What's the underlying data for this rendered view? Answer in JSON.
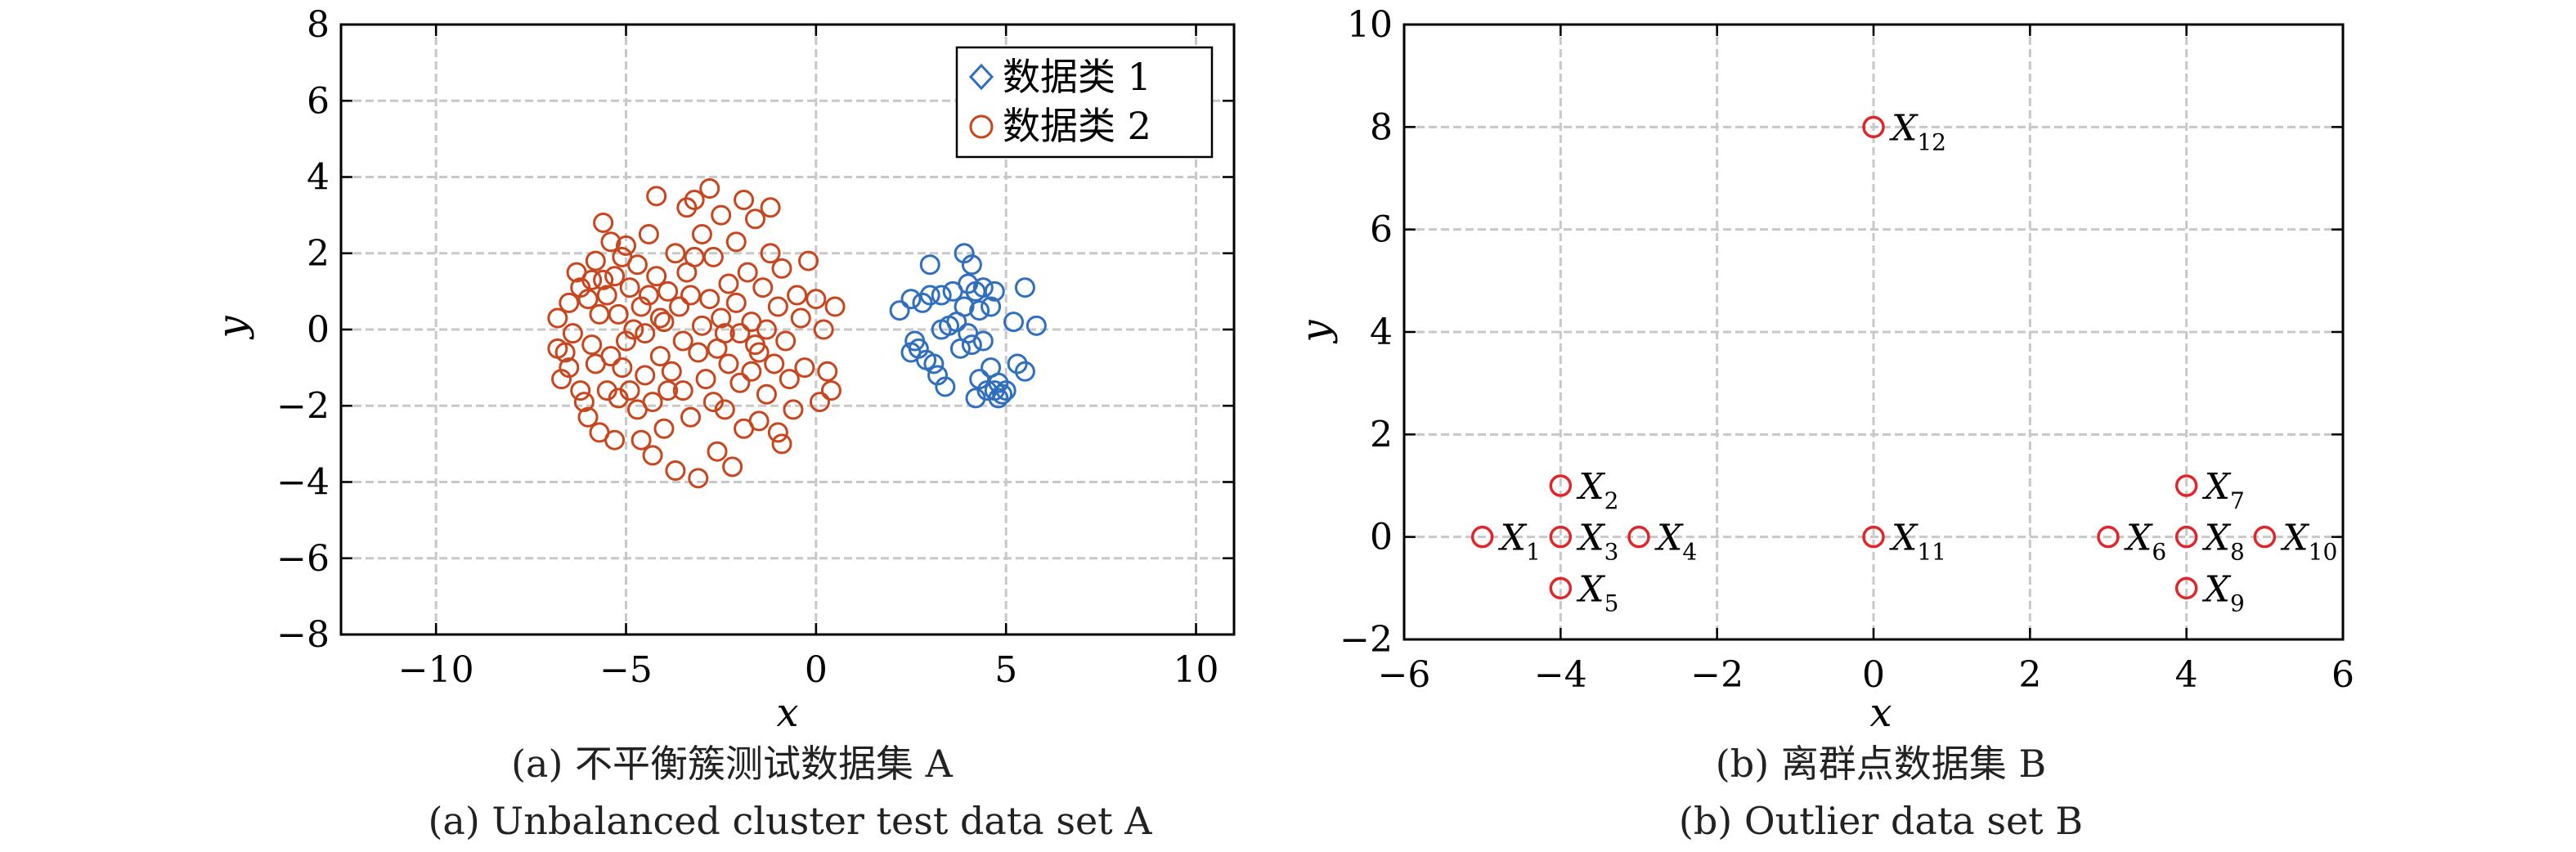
{
  "colors": {
    "series1": "#2f6fbd",
    "series2": "#c8461d",
    "outlier": "#e0262a",
    "grid": "#c8c8c8",
    "axis": "#000000"
  },
  "chart_data": [
    {
      "type": "scatter",
      "xlabel": "x",
      "ylabel": "y",
      "xlim": [
        -12.5,
        11
      ],
      "ylim": [
        -8,
        8
      ],
      "xticks": [
        -10,
        -5,
        0,
        5,
        10
      ],
      "yticks": [
        -8,
        -6,
        -4,
        -2,
        0,
        2,
        4,
        6,
        8
      ],
      "xtick_labels": [
        "−10",
        "−5",
        "0",
        "5",
        "10"
      ],
      "ytick_labels": [
        "−8",
        "−6",
        "−4",
        "−2",
        "0",
        "2",
        "4",
        "6",
        "8"
      ],
      "grid": true,
      "legend_position": "top-right",
      "caption_cn": "(a) 不平衡簇测试数据集 A",
      "caption_en": "(a) Unbalanced cluster test data set A",
      "series": [
        {
          "name": "数据类 1",
          "marker": "circle",
          "legend_marker": "diamond",
          "points": [
            [
              2.2,
              0.5
            ],
            [
              2.5,
              0.8
            ],
            [
              2.6,
              -0.3
            ],
            [
              2.5,
              -0.6
            ],
            [
              2.8,
              0.7
            ],
            [
              2.9,
              -0.8
            ],
            [
              3.0,
              1.7
            ],
            [
              3.0,
              0.9
            ],
            [
              3.1,
              -0.9
            ],
            [
              3.2,
              -1.2
            ],
            [
              3.3,
              0.0
            ],
            [
              3.4,
              -1.5
            ],
            [
              3.5,
              0.1
            ],
            [
              3.6,
              1.0
            ],
            [
              3.7,
              0.2
            ],
            [
              3.8,
              -0.5
            ],
            [
              3.9,
              2.0
            ],
            [
              4.0,
              1.2
            ],
            [
              4.0,
              -0.1
            ],
            [
              4.1,
              -0.4
            ],
            [
              4.1,
              1.7
            ],
            [
              4.2,
              1.0
            ],
            [
              4.2,
              -1.8
            ],
            [
              4.3,
              0.5
            ],
            [
              4.3,
              -1.3
            ],
            [
              4.4,
              1.1
            ],
            [
              4.4,
              -0.3
            ],
            [
              4.5,
              -1.6
            ],
            [
              4.6,
              0.6
            ],
            [
              4.7,
              1.0
            ],
            [
              4.7,
              -1.6
            ],
            [
              4.8,
              -1.4
            ],
            [
              4.8,
              -1.8
            ],
            [
              4.9,
              -1.7
            ],
            [
              5.0,
              -1.6
            ],
            [
              5.2,
              0.2
            ],
            [
              5.3,
              -0.9
            ],
            [
              5.5,
              1.1
            ],
            [
              5.5,
              -1.1
            ],
            [
              5.8,
              0.1
            ],
            [
              2.7,
              -0.5
            ],
            [
              3.3,
              0.9
            ],
            [
              3.9,
              0.6
            ],
            [
              4.6,
              -1.0
            ]
          ]
        },
        {
          "name": "数据类 2",
          "marker": "circle",
          "legend_marker": "circle",
          "points": [
            [
              -6.8,
              0.3
            ],
            [
              -6.8,
              -0.5
            ],
            [
              -6.7,
              -1.3
            ],
            [
              -6.6,
              -0.6
            ],
            [
              -6.5,
              0.7
            ],
            [
              -6.4,
              -0.1
            ],
            [
              -6.3,
              1.5
            ],
            [
              -6.2,
              -1.6
            ],
            [
              -6.2,
              1.1
            ],
            [
              -6.1,
              -1.9
            ],
            [
              -6.0,
              -2.3
            ],
            [
              -6.0,
              0.8
            ],
            [
              -5.9,
              -0.4
            ],
            [
              -5.8,
              1.8
            ],
            [
              -5.8,
              -0.9
            ],
            [
              -5.7,
              0.4
            ],
            [
              -5.7,
              -2.7
            ],
            [
              -5.6,
              1.3
            ],
            [
              -5.6,
              2.8
            ],
            [
              -5.5,
              -1.6
            ],
            [
              -5.5,
              0.9
            ],
            [
              -5.4,
              2.3
            ],
            [
              -5.4,
              -0.7
            ],
            [
              -5.3,
              -2.9
            ],
            [
              -5.3,
              1.4
            ],
            [
              -5.2,
              -1.8
            ],
            [
              -5.2,
              0.4
            ],
            [
              -5.1,
              -1.0
            ],
            [
              -5.0,
              2.2
            ],
            [
              -5.0,
              -0.3
            ],
            [
              -4.9,
              1.1
            ],
            [
              -4.9,
              -1.6
            ],
            [
              -4.8,
              0.0
            ],
            [
              -4.7,
              -2.1
            ],
            [
              -4.7,
              1.7
            ],
            [
              -4.6,
              0.6
            ],
            [
              -4.5,
              -1.2
            ],
            [
              -4.5,
              -0.1
            ],
            [
              -4.4,
              2.5
            ],
            [
              -4.4,
              0.9
            ],
            [
              -4.3,
              -1.9
            ],
            [
              -4.3,
              -3.3
            ],
            [
              -4.2,
              3.5
            ],
            [
              -4.2,
              1.4
            ],
            [
              -4.1,
              -0.7
            ],
            [
              -4.0,
              0.2
            ],
            [
              -4.0,
              -2.6
            ],
            [
              -3.9,
              1.0
            ],
            [
              -3.8,
              -1.1
            ],
            [
              -3.7,
              -3.7
            ],
            [
              -3.7,
              2.0
            ],
            [
              -3.6,
              0.6
            ],
            [
              -3.5,
              -0.3
            ],
            [
              -3.5,
              -1.6
            ],
            [
              -3.4,
              3.2
            ],
            [
              -3.4,
              1.5
            ],
            [
              -3.3,
              -2.3
            ],
            [
              -3.3,
              0.9
            ],
            [
              -3.2,
              3.4
            ],
            [
              -3.1,
              -0.6
            ],
            [
              -3.1,
              -3.9
            ],
            [
              -3.0,
              0.1
            ],
            [
              -3.0,
              2.5
            ],
            [
              -2.9,
              -1.3
            ],
            [
              -2.8,
              3.7
            ],
            [
              -2.8,
              0.8
            ],
            [
              -2.7,
              -1.9
            ],
            [
              -2.7,
              1.9
            ],
            [
              -2.6,
              -0.5
            ],
            [
              -2.6,
              -3.2
            ],
            [
              -2.5,
              3.0
            ],
            [
              -2.5,
              0.3
            ],
            [
              -2.4,
              -2.1
            ],
            [
              -2.3,
              1.2
            ],
            [
              -2.3,
              -0.9
            ],
            [
              -2.2,
              -3.6
            ],
            [
              -2.1,
              0.7
            ],
            [
              -2.1,
              2.3
            ],
            [
              -2.0,
              -1.4
            ],
            [
              -2.0,
              -0.1
            ],
            [
              -1.9,
              3.4
            ],
            [
              -1.9,
              -2.6
            ],
            [
              -1.8,
              1.5
            ],
            [
              -1.7,
              0.2
            ],
            [
              -1.7,
              -1.1
            ],
            [
              -1.6,
              2.9
            ],
            [
              -1.5,
              -0.6
            ],
            [
              -1.5,
              -2.4
            ],
            [
              -1.4,
              1.1
            ],
            [
              -1.3,
              0.0
            ],
            [
              -1.3,
              -1.7
            ],
            [
              -1.2,
              3.2
            ],
            [
              -1.2,
              2.0
            ],
            [
              -1.1,
              -0.9
            ],
            [
              -1.0,
              -2.7
            ],
            [
              -1.0,
              0.6
            ],
            [
              -0.9,
              1.6
            ],
            [
              -0.8,
              -0.3
            ],
            [
              -0.7,
              -1.3
            ],
            [
              -0.6,
              -2.1
            ],
            [
              -0.5,
              0.9
            ],
            [
              -0.4,
              0.3
            ],
            [
              -0.3,
              -1.0
            ],
            [
              -0.2,
              1.8
            ],
            [
              0.0,
              0.8
            ],
            [
              0.1,
              -1.9
            ],
            [
              0.2,
              0.0
            ],
            [
              0.3,
              -1.1
            ],
            [
              0.4,
              -1.6
            ],
            [
              0.5,
              0.6
            ],
            [
              -6.5,
              -1.0
            ],
            [
              -5.9,
              1.3
            ],
            [
              -4.6,
              -2.9
            ],
            [
              -3.9,
              -1.6
            ],
            [
              -3.2,
              1.9
            ],
            [
              -2.4,
              -0.1
            ],
            [
              -1.6,
              -0.4
            ],
            [
              -0.9,
              -3.0
            ],
            [
              -4.1,
              0.3
            ],
            [
              -5.1,
              1.9
            ]
          ]
        }
      ]
    },
    {
      "type": "scatter",
      "xlabel": "x",
      "ylabel": "y",
      "xlim": [
        -6,
        6
      ],
      "ylim": [
        -2,
        10
      ],
      "xticks": [
        -6,
        -4,
        -2,
        0,
        2,
        4,
        6
      ],
      "yticks": [
        -2,
        0,
        2,
        4,
        6,
        8,
        10
      ],
      "xtick_labels": [
        "−6",
        "−4",
        "−2",
        "0",
        "2",
        "4",
        "6"
      ],
      "ytick_labels": [
        "−2",
        "0",
        "2",
        "4",
        "6",
        "8",
        "10"
      ],
      "grid": true,
      "caption_cn": "(b) 离群点数据集 B",
      "caption_en": "(b) Outlier data set B",
      "points": [
        {
          "label": "X",
          "sub": "1",
          "x": -5,
          "y": 0,
          "label_side": "right"
        },
        {
          "label": "X",
          "sub": "2",
          "x": -4,
          "y": 1,
          "label_side": "right"
        },
        {
          "label": "X",
          "sub": "3",
          "x": -4,
          "y": 0,
          "label_side": "right"
        },
        {
          "label": "X",
          "sub": "4",
          "x": -3,
          "y": 0,
          "label_side": "right"
        },
        {
          "label": "X",
          "sub": "5",
          "x": -4,
          "y": -1,
          "label_side": "right"
        },
        {
          "label": "X",
          "sub": "6",
          "x": 3,
          "y": 0,
          "label_side": "right"
        },
        {
          "label": "X",
          "sub": "7",
          "x": 4,
          "y": 1,
          "label_side": "right"
        },
        {
          "label": "X",
          "sub": "8",
          "x": 4,
          "y": 0,
          "label_side": "right"
        },
        {
          "label": "X",
          "sub": "9",
          "x": 4,
          "y": -1,
          "label_side": "right"
        },
        {
          "label": "X",
          "sub": "10",
          "x": 5,
          "y": 0,
          "label_side": "right"
        },
        {
          "label": "X",
          "sub": "11",
          "x": 0,
          "y": 0,
          "label_side": "right"
        },
        {
          "label": "X",
          "sub": "12",
          "x": 0,
          "y": 8,
          "label_side": "right"
        }
      ]
    }
  ]
}
